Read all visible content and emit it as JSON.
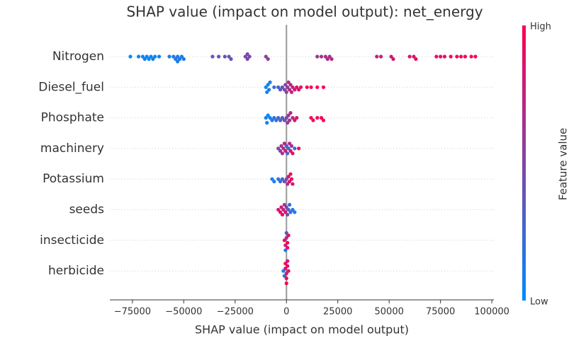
{
  "chart_data": {
    "type": "beeswarm",
    "title": "SHAP value (impact on model output): net_energy",
    "x_label": "SHAP value (impact on model output)",
    "colorbar_label": "Feature value",
    "colorbar_high": "High",
    "colorbar_low": "Low",
    "colormap": [
      "#008bfb",
      "#ff0052"
    ],
    "xlim": [
      -86000,
      101000
    ],
    "xticks": [
      {
        "value": -75000,
        "label": "−75000"
      },
      {
        "value": -50000,
        "label": "−50000"
      },
      {
        "value": -25000,
        "label": "−25000"
      },
      0,
      25000,
      50000,
      75000,
      100000
    ],
    "series": [
      {
        "name": "Nitrogen",
        "values": [
          -76000,
          -72000,
          -70000,
          -69000,
          -68000,
          -67000,
          -66000,
          -65000,
          -64000,
          -62000,
          -57000,
          -55000,
          -54000,
          -53000,
          -53000,
          -52000,
          -51000,
          -50000,
          -36000,
          -33000,
          -30000,
          -28000,
          -27000,
          -20000,
          -19000,
          -19000,
          -18000,
          -10000,
          -9000,
          15000,
          17000,
          19000,
          20000,
          21000,
          22000,
          44000,
          46000,
          51000,
          52000,
          60000,
          62000,
          63000,
          73000,
          75000,
          77000,
          80000,
          83000,
          85000,
          87000,
          90000,
          92000
        ],
        "feature_values": [
          0.02,
          0.05,
          0.05,
          0.06,
          0.05,
          0.06,
          0.05,
          0.06,
          0.05,
          0.06,
          0.1,
          0.1,
          0.12,
          0.12,
          0.11,
          0.12,
          0.1,
          0.12,
          0.35,
          0.38,
          0.4,
          0.42,
          0.4,
          0.45,
          0.48,
          0.46,
          0.48,
          0.55,
          0.55,
          0.6,
          0.62,
          0.65,
          0.66,
          0.68,
          0.7,
          0.75,
          0.76,
          0.8,
          0.82,
          0.85,
          0.86,
          0.88,
          0.9,
          0.92,
          0.92,
          0.95,
          0.96,
          0.97,
          0.98,
          0.99,
          1.0
        ]
      },
      {
        "name": "Diesel_fuel",
        "values": [
          -10000,
          -9500,
          -9000,
          -8500,
          -8000,
          -6000,
          -4000,
          -3000,
          -2000,
          -1000,
          -500,
          0,
          500,
          1000,
          1500,
          2000,
          2500,
          3000,
          4000,
          5000,
          6000,
          7000,
          10000,
          12000,
          15000,
          18000
        ],
        "feature_values": [
          0.05,
          0.05,
          0.08,
          0.1,
          0.1,
          0.2,
          0.3,
          0.35,
          0.4,
          0.45,
          0.5,
          0.55,
          0.6,
          0.65,
          0.7,
          0.7,
          0.75,
          0.75,
          0.8,
          0.85,
          0.85,
          0.9,
          0.95,
          0.95,
          1.0,
          1.0
        ]
      },
      {
        "name": "Phosphate",
        "values": [
          -10000,
          -9500,
          -9000,
          -8000,
          -7000,
          -6000,
          -5000,
          -4000,
          -3000,
          -2000,
          -1000,
          0,
          500,
          1000,
          1500,
          2000,
          3000,
          4000,
          5000,
          12000,
          13000,
          15000,
          17000,
          18000
        ],
        "feature_values": [
          0.05,
          0.05,
          0.08,
          0.1,
          0.12,
          0.15,
          0.2,
          0.25,
          0.3,
          0.35,
          0.4,
          0.5,
          0.55,
          0.6,
          0.65,
          0.7,
          0.75,
          0.8,
          0.85,
          0.95,
          0.95,
          1.0,
          1.0,
          1.0
        ]
      },
      {
        "name": "machinery",
        "values": [
          -4000,
          -3000,
          -2500,
          -2000,
          -1500,
          -1000,
          -500,
          0,
          500,
          1000,
          1500,
          2000,
          2500,
          3000,
          4000,
          6000
        ],
        "feature_values": [
          0.5,
          0.55,
          0.6,
          0.65,
          0.7,
          0.75,
          0.8,
          0.35,
          0.3,
          0.25,
          0.7,
          0.85,
          0.6,
          0.9,
          0.2,
          0.95
        ]
      },
      {
        "name": "Potassium",
        "values": [
          -7000,
          -6000,
          -4000,
          -3000,
          -2000,
          -1000,
          0,
          500,
          1000,
          1500,
          2000,
          2500,
          3000
        ],
        "feature_values": [
          0.05,
          0.1,
          0.15,
          0.2,
          0.3,
          0.4,
          0.5,
          0.7,
          0.8,
          0.85,
          0.9,
          0.95,
          0.85
        ]
      },
      {
        "name": "seeds",
        "values": [
          -4000,
          -3000,
          -2500,
          -2000,
          -1500,
          -1000,
          -500,
          0,
          500,
          1000,
          1500,
          2000,
          3000,
          4000
        ],
        "feature_values": [
          0.8,
          0.9,
          0.85,
          0.95,
          0.7,
          0.6,
          0.9,
          0.5,
          0.4,
          0.3,
          0.2,
          0.25,
          0.15,
          0.1
        ]
      },
      {
        "name": "insecticide",
        "values": [
          -1000,
          -500,
          0,
          0,
          500,
          1000,
          -500,
          500
        ],
        "feature_values": [
          0.9,
          0.8,
          0.7,
          0.4,
          0.95,
          0.85,
          0.1,
          0.9
        ]
      },
      {
        "name": "herbicide",
        "values": [
          -1500,
          -1000,
          -500,
          0,
          0,
          500,
          1000,
          -500,
          0,
          500
        ],
        "feature_values": [
          0.1,
          0.2,
          0.9,
          0.8,
          0.95,
          0.9,
          0.85,
          0.9,
          1.0,
          0.85
        ]
      }
    ]
  }
}
